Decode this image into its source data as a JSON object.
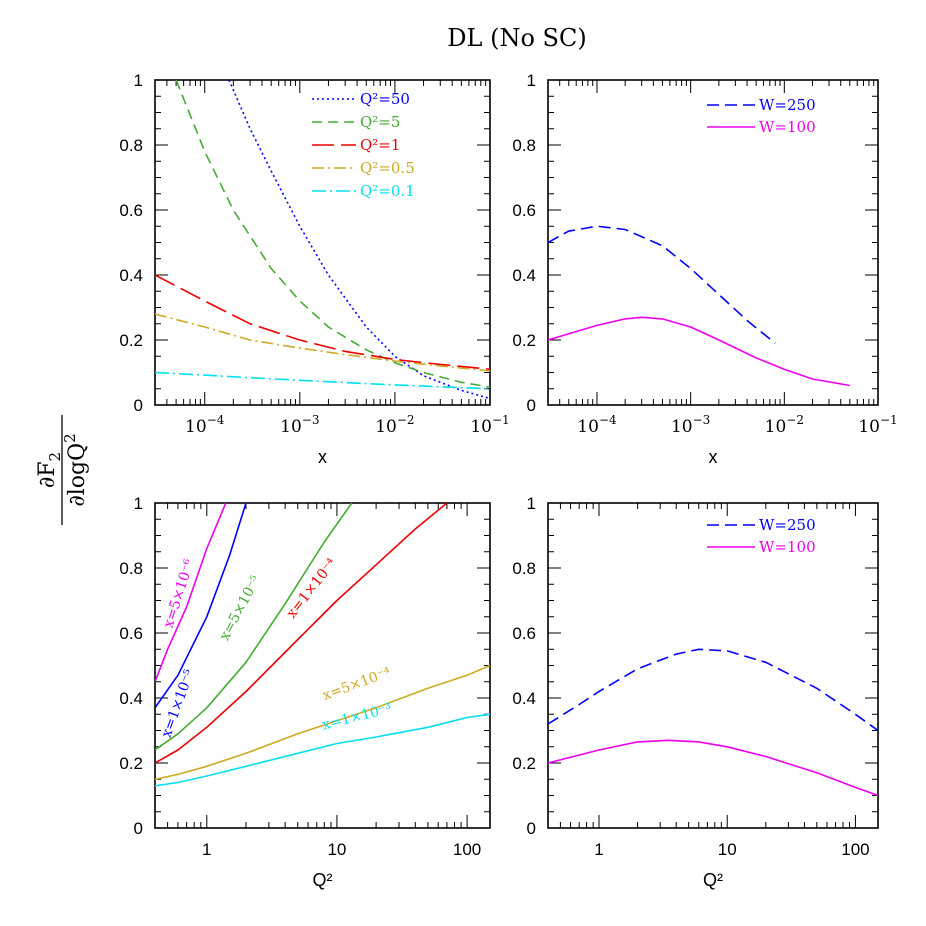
{
  "figure_title": "DL (No SC)",
  "y_axis_label": {
    "numerator": "∂F",
    "numerator_sub": "2",
    "denominator": "∂logQ",
    "denominator_sup": "2"
  },
  "colors": {
    "blue": "#0000ff",
    "green": "#44aa33",
    "red": "#ee0000",
    "gold": "#ccaa22",
    "cyan": "#00e0ee",
    "magenta": "#ee00ee"
  },
  "chart_data": [
    {
      "id": "top-left",
      "type": "line",
      "xscale": "log",
      "xlim": [
        3e-05,
        0.1
      ],
      "ylim": [
        0,
        1
      ],
      "xlabel": "x",
      "x_ticklabels": [
        {
          "base": "10",
          "exp": "−4",
          "value": 0.0001
        },
        {
          "base": "10",
          "exp": "−3",
          "value": 0.001
        },
        {
          "base": "10",
          "exp": "−2",
          "value": 0.01
        },
        {
          "base": "10",
          "exp": "−1",
          "value": 0.1
        }
      ],
      "y_ticklabels": [
        "0",
        "0.2",
        "0.4",
        "0.6",
        "0.8",
        "1"
      ],
      "legend_position": "top-right",
      "series": [
        {
          "name": "Q²=50",
          "color": "#0000ff",
          "dash": "2,3",
          "x": [
            0.00018,
            0.0003,
            0.0005,
            0.001,
            0.002,
            0.005,
            0.01,
            0.02,
            0.05,
            0.1
          ],
          "y": [
            1.0,
            0.85,
            0.72,
            0.55,
            0.4,
            0.24,
            0.15,
            0.09,
            0.045,
            0.02
          ]
        },
        {
          "name": "Q²=5",
          "color": "#44aa33",
          "dash": "10,6",
          "x": [
            5e-05,
            0.0001,
            0.0002,
            0.0005,
            0.001,
            0.002,
            0.005,
            0.01,
            0.02,
            0.05,
            0.1
          ],
          "y": [
            1.0,
            0.78,
            0.6,
            0.42,
            0.32,
            0.24,
            0.17,
            0.13,
            0.1,
            0.07,
            0.055
          ]
        },
        {
          "name": "Q²=1",
          "color": "#ee0000",
          "dash": "22,7",
          "x": [
            3e-05,
            0.0001,
            0.0003,
            0.001,
            0.003,
            0.01,
            0.03,
            0.1
          ],
          "y": [
            0.4,
            0.32,
            0.25,
            0.2,
            0.165,
            0.14,
            0.125,
            0.11
          ]
        },
        {
          "name": "Q²=0.5",
          "color": "#ccaa22",
          "dash": "12,4,2,4",
          "x": [
            3e-05,
            0.0001,
            0.0003,
            0.001,
            0.003,
            0.01,
            0.03,
            0.1
          ],
          "y": [
            0.28,
            0.24,
            0.2,
            0.175,
            0.155,
            0.135,
            0.12,
            0.105
          ]
        },
        {
          "name": "Q²=0.1",
          "color": "#00e0ee",
          "dash": "14,4,2,4",
          "x": [
            3e-05,
            0.0001,
            0.0003,
            0.001,
            0.003,
            0.01,
            0.03,
            0.1
          ],
          "y": [
            0.1,
            0.092,
            0.084,
            0.076,
            0.069,
            0.062,
            0.056,
            0.05
          ]
        }
      ]
    },
    {
      "id": "top-right",
      "type": "line",
      "xscale": "log",
      "xlim": [
        3e-05,
        0.1
      ],
      "ylim": [
        0,
        1
      ],
      "xlabel": "x",
      "x_ticklabels": [
        {
          "base": "10",
          "exp": "−4",
          "value": 0.0001
        },
        {
          "base": "10",
          "exp": "−3",
          "value": 0.001
        },
        {
          "base": "10",
          "exp": "−2",
          "value": 0.01
        },
        {
          "base": "10",
          "exp": "−1",
          "value": 0.1
        }
      ],
      "y_ticklabels": [
        "0",
        "0.2",
        "0.4",
        "0.6",
        "0.8",
        "1"
      ],
      "legend_position": "top-right",
      "series": [
        {
          "name": "W=250",
          "color": "#0000ff",
          "dash": "12,6",
          "x": [
            3e-05,
            5e-05,
            0.0001,
            0.0002,
            0.0005,
            0.001,
            0.002,
            0.004,
            0.008
          ],
          "y": [
            0.5,
            0.535,
            0.55,
            0.54,
            0.49,
            0.42,
            0.34,
            0.26,
            0.19
          ]
        },
        {
          "name": "W=100",
          "color": "#ee00ee",
          "dash": "",
          "x": [
            3e-05,
            0.0001,
            0.0002,
            0.0003,
            0.0005,
            0.001,
            0.002,
            0.005,
            0.01,
            0.02,
            0.05
          ],
          "y": [
            0.2,
            0.245,
            0.265,
            0.27,
            0.265,
            0.24,
            0.2,
            0.145,
            0.11,
            0.08,
            0.06
          ]
        }
      ]
    },
    {
      "id": "bottom-left",
      "type": "line",
      "xscale": "log",
      "xlim": [
        0.4,
        150
      ],
      "ylim": [
        0,
        1
      ],
      "xlabel": "Q²",
      "x_ticklabels": [
        {
          "base": "1",
          "exp": "",
          "value": 1
        },
        {
          "base": "10",
          "exp": "",
          "value": 10
        },
        {
          "base": "100",
          "exp": "",
          "value": 100
        }
      ],
      "y_ticklabels": [
        "0",
        "0.2",
        "0.4",
        "0.6",
        "0.8",
        "1"
      ],
      "series": [
        {
          "name": "x=5×10⁻⁶",
          "color": "#ee00ee",
          "dash": "",
          "x": [
            0.4,
            0.5,
            0.7,
            1.0,
            1.4
          ],
          "y": [
            0.45,
            0.55,
            0.68,
            0.86,
            1.0
          ]
        },
        {
          "name": "x=1×10⁻⁵",
          "color": "#0000ff",
          "dash": "",
          "x": [
            0.4,
            0.6,
            1.0,
            1.5,
            2.0
          ],
          "y": [
            0.37,
            0.47,
            0.65,
            0.84,
            1.0
          ]
        },
        {
          "name": "x=5×10⁻⁵",
          "color": "#44aa33",
          "dash": "",
          "x": [
            0.4,
            0.6,
            1.0,
            2.0,
            4.0,
            8.0,
            13.0
          ],
          "y": [
            0.24,
            0.29,
            0.37,
            0.51,
            0.69,
            0.88,
            1.0
          ]
        },
        {
          "name": "x=1×10⁻⁴",
          "color": "#ee0000",
          "dash": "",
          "x": [
            0.4,
            0.6,
            1.0,
            2.0,
            5.0,
            10.0,
            20.0,
            40.0,
            70.0
          ],
          "y": [
            0.2,
            0.24,
            0.31,
            0.42,
            0.58,
            0.7,
            0.81,
            0.92,
            1.0
          ]
        },
        {
          "name": "x=5×10⁻⁴",
          "color": "#ccaa22",
          "dash": "",
          "x": [
            0.4,
            0.6,
            1.0,
            2.0,
            5.0,
            10.0,
            20.0,
            50.0,
            100.0,
            150.0
          ],
          "y": [
            0.15,
            0.165,
            0.19,
            0.23,
            0.29,
            0.33,
            0.37,
            0.43,
            0.47,
            0.5
          ]
        },
        {
          "name": "x=1×10⁻³",
          "color": "#00e0ee",
          "dash": "",
          "x": [
            0.4,
            0.6,
            1.0,
            2.0,
            5.0,
            10.0,
            20.0,
            50.0,
            100.0,
            150.0
          ],
          "y": [
            0.13,
            0.14,
            0.16,
            0.19,
            0.23,
            0.26,
            0.28,
            0.31,
            0.34,
            0.35
          ]
        }
      ]
    },
    {
      "id": "bottom-right",
      "type": "line",
      "xscale": "log",
      "xlim": [
        0.4,
        150
      ],
      "ylim": [
        0,
        1
      ],
      "xlabel": "Q²",
      "x_ticklabels": [
        {
          "base": "1",
          "exp": "",
          "value": 1
        },
        {
          "base": "10",
          "exp": "",
          "value": 10
        },
        {
          "base": "100",
          "exp": "",
          "value": 100
        }
      ],
      "y_ticklabels": [
        "0",
        "0.2",
        "0.4",
        "0.6",
        "0.8",
        "1"
      ],
      "legend_position": "top-right",
      "series": [
        {
          "name": "W=250",
          "color": "#0000ff",
          "dash": "12,6",
          "x": [
            0.4,
            0.7,
            1.0,
            2.0,
            4.0,
            6.0,
            10.0,
            20.0,
            50.0,
            100.0,
            150.0
          ],
          "y": [
            0.32,
            0.38,
            0.42,
            0.49,
            0.535,
            0.55,
            0.545,
            0.51,
            0.43,
            0.35,
            0.3
          ]
        },
        {
          "name": "W=100",
          "color": "#ee00ee",
          "dash": "",
          "x": [
            0.4,
            1.0,
            2.0,
            3.5,
            6.0,
            10.0,
            20.0,
            50.0,
            100.0,
            150.0
          ],
          "y": [
            0.2,
            0.24,
            0.265,
            0.27,
            0.265,
            0.25,
            0.22,
            0.17,
            0.125,
            0.1
          ]
        }
      ]
    }
  ]
}
